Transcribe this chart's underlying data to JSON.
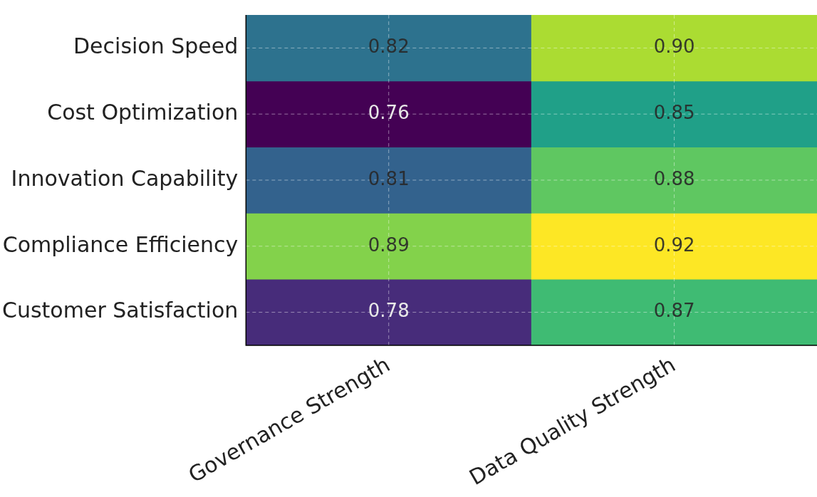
{
  "chart_data": {
    "type": "heatmap",
    "categories": [
      "Governance Strength",
      "Data Quality Strength"
    ],
    "y_categories": [
      "Decision Speed",
      "Cost Optimization",
      "Innovation Capability",
      "Compliance Efficiency",
      "Customer Satisfaction"
    ],
    "cells": [
      [
        0.82,
        0.9
      ],
      [
        0.76,
        0.85
      ],
      [
        0.81,
        0.88
      ],
      [
        0.89,
        0.92
      ],
      [
        0.78,
        0.87
      ]
    ],
    "cell_labels": [
      [
        "0.82",
        "0.90"
      ],
      [
        "0.76",
        "0.85"
      ],
      [
        "0.81",
        "0.88"
      ],
      [
        "0.89",
        "0.92"
      ],
      [
        "0.78",
        "0.87"
      ]
    ],
    "data_labels": true,
    "grid": true
  }
}
